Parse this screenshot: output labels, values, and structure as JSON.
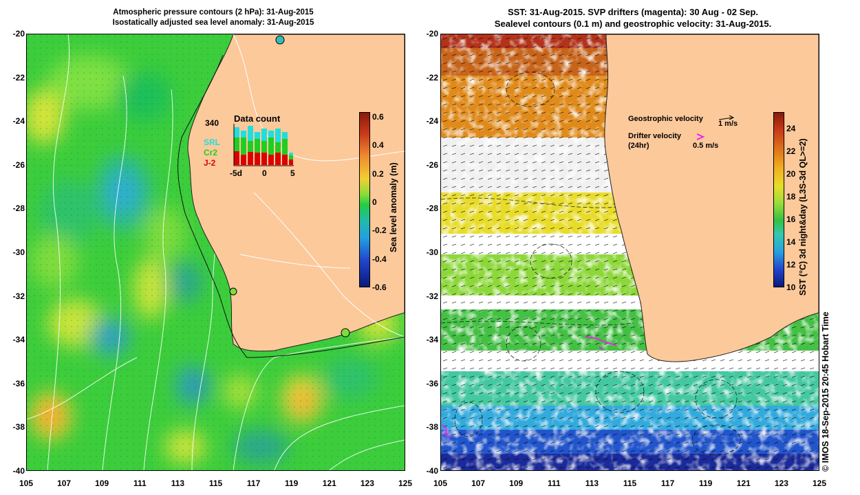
{
  "left_panel": {
    "title_line1": "Atmospheric pressure contours (2 hPa): 31-Aug-2015",
    "title_line2": "Isostatically adjusted sea level anomaly: 31-Aug-2015",
    "colorbar": {
      "title": "Sea level anomaly (m)",
      "ticks": [
        "0.6",
        "0.4",
        "0.2",
        "0",
        "-0.2",
        "-0.4",
        "-0.6"
      ]
    },
    "data_count": {
      "title": "Data count",
      "max_label": "340",
      "series": [
        "SRL",
        "Cr2",
        "J-2"
      ],
      "series_colors": [
        "#22dddd",
        "#22cc22",
        "#dd0000"
      ],
      "x_ticks": [
        "-5d",
        "0",
        "5"
      ]
    }
  },
  "right_panel": {
    "title_line1": "SST: 31-Aug-2015. SVP drifters (magenta): 30 Aug - 02 Sep.",
    "title_line2": "Sealevel contours (0.1 m) and geostrophic velocity: 31-Aug-2015.",
    "legend": {
      "geostrophic_label": "Geostrophic velocity",
      "geostrophic_scale": "1 m/s",
      "drifter_label": "Drifter velocity",
      "drifter_sub": "(24hr)",
      "drifter_scale": "0.5 m/s"
    },
    "colorbar": {
      "title": "SST (°C) 3d night&day (L3S-3d QL>=2)",
      "ticks": [
        "24",
        "22",
        "20",
        "18",
        "16",
        "14",
        "12",
        "10"
      ]
    }
  },
  "axes": {
    "y_ticks": [
      "-20",
      "-22",
      "-24",
      "-26",
      "-28",
      "-30",
      "-32",
      "-34",
      "-36",
      "-38",
      "-40"
    ],
    "x_ticks": [
      "105",
      "107",
      "109",
      "111",
      "113",
      "115",
      "117",
      "119",
      "121",
      "123",
      "125"
    ]
  },
  "credit": "© IMOS 18-Sep-2015 20:45 Hobart Time",
  "colors": {
    "land": "#fcc99b",
    "sla_mid": "#33cc33",
    "drifter": "#ee22ee"
  }
}
